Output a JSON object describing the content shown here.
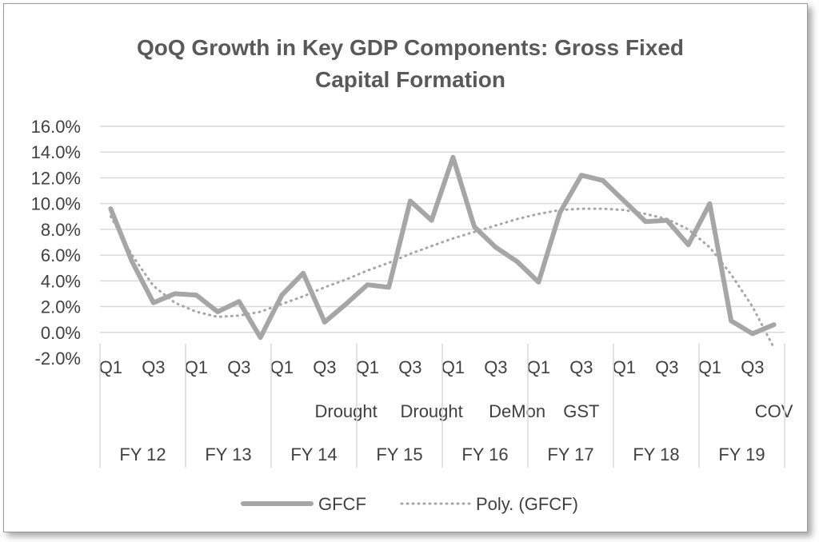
{
  "chart_data": {
    "type": "line",
    "title_line1": "QoQ Growth in Key GDP Components: Gross Fixed",
    "title_line2": "Capital Formation",
    "y_tick_labels": [
      "16.0%",
      "14.0%",
      "12.0%",
      "10.0%",
      "8.0%",
      "6.0%",
      "4.0%",
      "2.0%",
      "0.0%",
      "-2.0%"
    ],
    "ylim": [
      -2,
      16
    ],
    "y_step": 2,
    "grid": true,
    "quarter_labels": [
      "Q1",
      "Q3",
      "Q1",
      "Q3",
      "Q1",
      "Q3",
      "Q1",
      "Q3",
      "Q1",
      "Q3",
      "Q1",
      "Q3",
      "Q1",
      "Q3",
      "Q1",
      "Q3"
    ],
    "event_labels": [
      {
        "text": "Drought",
        "quarter_index": 11
      },
      {
        "text": "Drought",
        "quarter_index": 15
      },
      {
        "text": "DeMon",
        "quarter_index": 19
      },
      {
        "text": "GST",
        "quarter_index": 22
      },
      {
        "text": "COV",
        "quarter_index": 31
      }
    ],
    "fiscal_years": [
      "FY 12",
      "FY 13",
      "FY 14",
      "FY 15",
      "FY 16",
      "FY 17",
      "FY 18",
      "FY 19"
    ],
    "quarters_per_year": 4,
    "series": [
      {
        "name": "GFCF",
        "color": "#a6a6a6",
        "style": "solid",
        "values": [
          9.6,
          5.5,
          2.3,
          3.0,
          2.9,
          1.6,
          2.4,
          -0.4,
          2.9,
          4.6,
          0.8,
          2.2,
          3.7,
          3.5,
          10.2,
          8.7,
          13.6,
          8.2,
          6.6,
          5.5,
          3.9,
          9.3,
          12.2,
          11.8,
          10.2,
          8.6,
          8.7,
          6.8,
          10.0,
          0.9,
          -0.1,
          0.6
        ]
      },
      {
        "name": "Poly. (GFCF)",
        "color": "#a6a6a6",
        "style": "dotted",
        "values": [
          9.0,
          6.0,
          3.6,
          2.3,
          1.6,
          1.2,
          1.3,
          1.6,
          2.2,
          2.8,
          3.5,
          4.1,
          4.8,
          5.4,
          6.1,
          6.7,
          7.3,
          7.8,
          8.3,
          8.8,
          9.2,
          9.5,
          9.6,
          9.6,
          9.5,
          9.2,
          8.8,
          8.0,
          6.6,
          4.5,
          2.0,
          -1.2
        ]
      }
    ],
    "legend": [
      {
        "label": "GFCF",
        "style": "solid"
      },
      {
        "label": "Poly. (GFCF)",
        "style": "dotted"
      }
    ],
    "legend_position": "bottom"
  }
}
